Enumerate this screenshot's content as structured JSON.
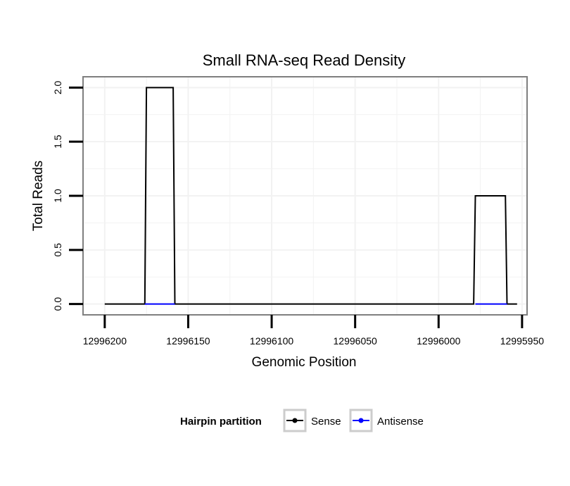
{
  "chart_data": {
    "type": "line",
    "title": "Small RNA-seq Read Density",
    "xlabel": "Genomic Position",
    "ylabel": "Total Reads",
    "xlim": [
      12996213,
      12995947
    ],
    "ylim": [
      -0.1,
      2.1
    ],
    "x_reversed": true,
    "x_ticks": [
      12996200,
      12996150,
      12996100,
      12996050,
      12996000,
      12995950
    ],
    "x_tick_labels": [
      "12996200",
      "12996150",
      "12996100",
      "12996050",
      "12996000",
      "12995950"
    ],
    "y_ticks": [
      0.0,
      0.5,
      1.0,
      1.5,
      2.0
    ],
    "y_tick_labels": [
      "0.0",
      "0.5",
      "1.0",
      "1.5",
      "2.0"
    ],
    "grid": true,
    "legend": {
      "title": "Hairpin partition",
      "position": "bottom",
      "entries": [
        {
          "name": "Sense",
          "color": "#000000"
        },
        {
          "name": "Antisense",
          "color": "#0000ff"
        }
      ]
    },
    "series": [
      {
        "name": "Sense",
        "color": "#000000",
        "x": [
          12996200,
          12996176,
          12996175,
          12996159,
          12996158,
          12995979,
          12995978,
          12995960,
          12995959,
          12995953
        ],
        "y": [
          0,
          0,
          2,
          2,
          0,
          0,
          1,
          1,
          0,
          0
        ]
      },
      {
        "name": "Antisense",
        "color": "#0000ff",
        "x": [
          12996176,
          12996158,
          12995978,
          12995959
        ],
        "y": [
          0,
          0,
          0,
          0
        ],
        "segments": [
          [
            0,
            1
          ],
          [
            2,
            3
          ]
        ]
      }
    ]
  }
}
